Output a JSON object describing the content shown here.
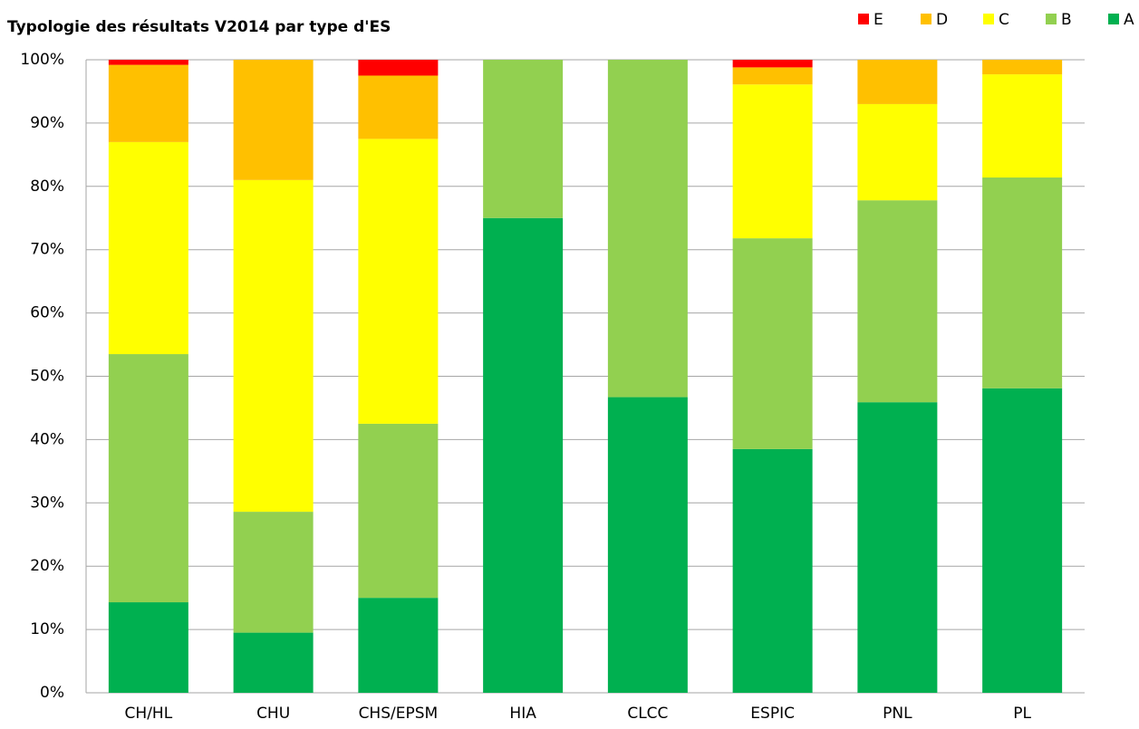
{
  "chart_data": {
    "type": "stacked_bar",
    "title": "Typologie des résultats V2014 par type d'ES",
    "categories": [
      "CH/HL",
      "CHU",
      "CHS/EPSM",
      "HIA",
      "CLCC",
      "ESPIC",
      "PNL",
      "PL"
    ],
    "series": [
      {
        "name": "A",
        "color": "#00b050",
        "values": [
          14.3,
          9.5,
          15,
          75,
          46.7,
          38.5,
          45.9,
          48.1
        ]
      },
      {
        "name": "B",
        "color": "#92d050",
        "values": [
          39.2,
          19.1,
          27.5,
          25,
          53.3,
          33.3,
          31.9,
          33.3
        ]
      },
      {
        "name": "C",
        "color": "#ffff00",
        "values": [
          33.5,
          52.4,
          45,
          0,
          0,
          24.3,
          15.2,
          16.3
        ]
      },
      {
        "name": "D",
        "color": "#ffc000",
        "values": [
          12.2,
          19,
          10,
          0,
          0,
          2.7,
          7,
          2.3
        ]
      },
      {
        "name": "E",
        "color": "#ff0000",
        "values": [
          0.8,
          0,
          2.5,
          0,
          0,
          1.2,
          0,
          0
        ]
      }
    ],
    "ylim": [
      0,
      100
    ],
    "yticks": [
      {
        "value": 0,
        "label": "0%"
      },
      {
        "value": 10,
        "label": "10%"
      },
      {
        "value": 20,
        "label": "20%"
      },
      {
        "value": 30,
        "label": "30%"
      },
      {
        "value": 40,
        "label": "40%"
      },
      {
        "value": 50,
        "label": "50%"
      },
      {
        "value": 60,
        "label": "60%"
      },
      {
        "value": 70,
        "label": "70%"
      },
      {
        "value": 80,
        "label": "80%"
      },
      {
        "value": 90,
        "label": "90%"
      },
      {
        "value": 100,
        "label": "100%"
      }
    ],
    "grid": true,
    "legend": "top-right"
  }
}
